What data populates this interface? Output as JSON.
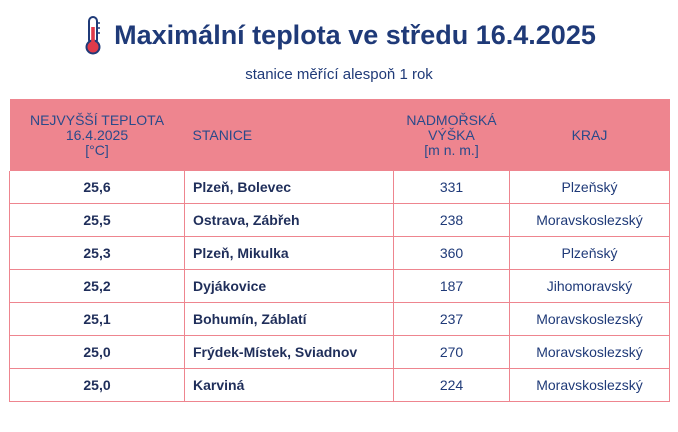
{
  "title": "Maximální teplota ve středu 16.4.2025",
  "subtitle": "stanice měřící alespoň 1 rok",
  "icon": "thermometer-icon",
  "colors": {
    "header_bg": "#ee858f",
    "border": "#ee858f",
    "text": "#1f3a78",
    "thermo_red": "#e03a4a"
  },
  "table": {
    "headers": {
      "temp": [
        "NEJVYŠŠÍ TEPLOTA",
        "16.4.2025",
        "[°C]"
      ],
      "station": "STANICE",
      "altitude": [
        "NADMOŘSKÁ",
        "VÝŠKA",
        "[m n. m.]"
      ],
      "region": "KRAJ"
    },
    "rows": [
      {
        "temp": "25,6",
        "station": "Plzeň, Bolevec",
        "altitude": "331",
        "region": "Plzeňský"
      },
      {
        "temp": "25,5",
        "station": "Ostrava, Zábřeh",
        "altitude": "238",
        "region": "Moravskoslezský"
      },
      {
        "temp": "25,3",
        "station": "Plzeň, Mikulka",
        "altitude": "360",
        "region": "Plzeňský"
      },
      {
        "temp": "25,2",
        "station": "Dyjákovice",
        "altitude": "187",
        "region": "Jihomoravský"
      },
      {
        "temp": "25,1",
        "station": "Bohumín, Záblatí",
        "altitude": "237",
        "region": "Moravskoslezský"
      },
      {
        "temp": "25,0",
        "station": "Frýdek-Místek, Sviadnov",
        "altitude": "270",
        "region": "Moravskoslezský"
      },
      {
        "temp": "25,0",
        "station": "Karviná",
        "altitude": "224",
        "region": "Moravskoslezský"
      }
    ]
  }
}
